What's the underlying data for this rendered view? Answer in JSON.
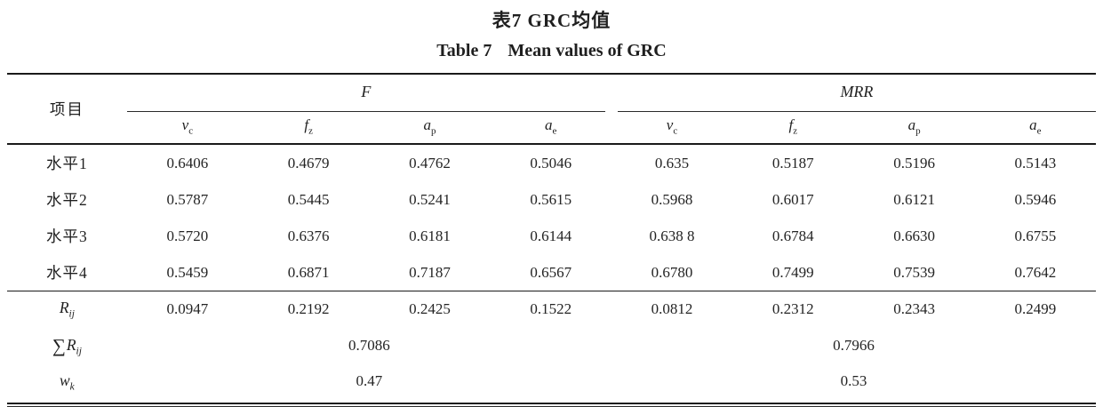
{
  "titles": {
    "cn": "表7 GRC均值",
    "en_label": "Table 7",
    "en_text": "Mean values of GRC"
  },
  "table": {
    "item_header": "项目",
    "groups": [
      {
        "label": "F"
      },
      {
        "label": "MRR"
      }
    ],
    "subcols": [
      {
        "base": "v",
        "sub": "c"
      },
      {
        "base": "f",
        "sub": "z"
      },
      {
        "base": "a",
        "sub": "p"
      },
      {
        "base": "a",
        "sub": "e"
      },
      {
        "base": "v",
        "sub": "c"
      },
      {
        "base": "f",
        "sub": "z"
      },
      {
        "base": "a",
        "sub": "p"
      },
      {
        "base": "a",
        "sub": "e"
      }
    ],
    "rows": [
      {
        "label": "水平1",
        "values": [
          "0.6406",
          "0.4679",
          "0.4762",
          "0.5046",
          "0.635",
          "0.5187",
          "0.5196",
          "0.5143"
        ]
      },
      {
        "label": "水平2",
        "values": [
          "0.5787",
          "0.5445",
          "0.5241",
          "0.5615",
          "0.5968",
          "0.6017",
          "0.6121",
          "0.5946"
        ]
      },
      {
        "label": "水平3",
        "values": [
          "0.5720",
          "0.6376",
          "0.6181",
          "0.6144",
          "0.638 8",
          "0.6784",
          "0.6630",
          "0.6755"
        ]
      },
      {
        "label": "水平4",
        "values": [
          "0.5459",
          "0.6871",
          "0.7187",
          "0.6567",
          "0.6780",
          "0.7499",
          "0.7539",
          "0.7642"
        ]
      }
    ],
    "rij": {
      "label_base": "R",
      "label_sub": "ij",
      "values": [
        "0.0947",
        "0.2192",
        "0.2425",
        "0.1522",
        "0.0812",
        "0.2312",
        "0.2343",
        "0.2499"
      ]
    },
    "sum_rij": {
      "sum_symbol": "∑",
      "label_base": "R",
      "label_sub": "ij",
      "values": [
        "0.7086",
        "0.7966"
      ]
    },
    "wk": {
      "label_base": "w",
      "label_sub": "k",
      "values": [
        "0.47",
        "0.53"
      ]
    }
  }
}
